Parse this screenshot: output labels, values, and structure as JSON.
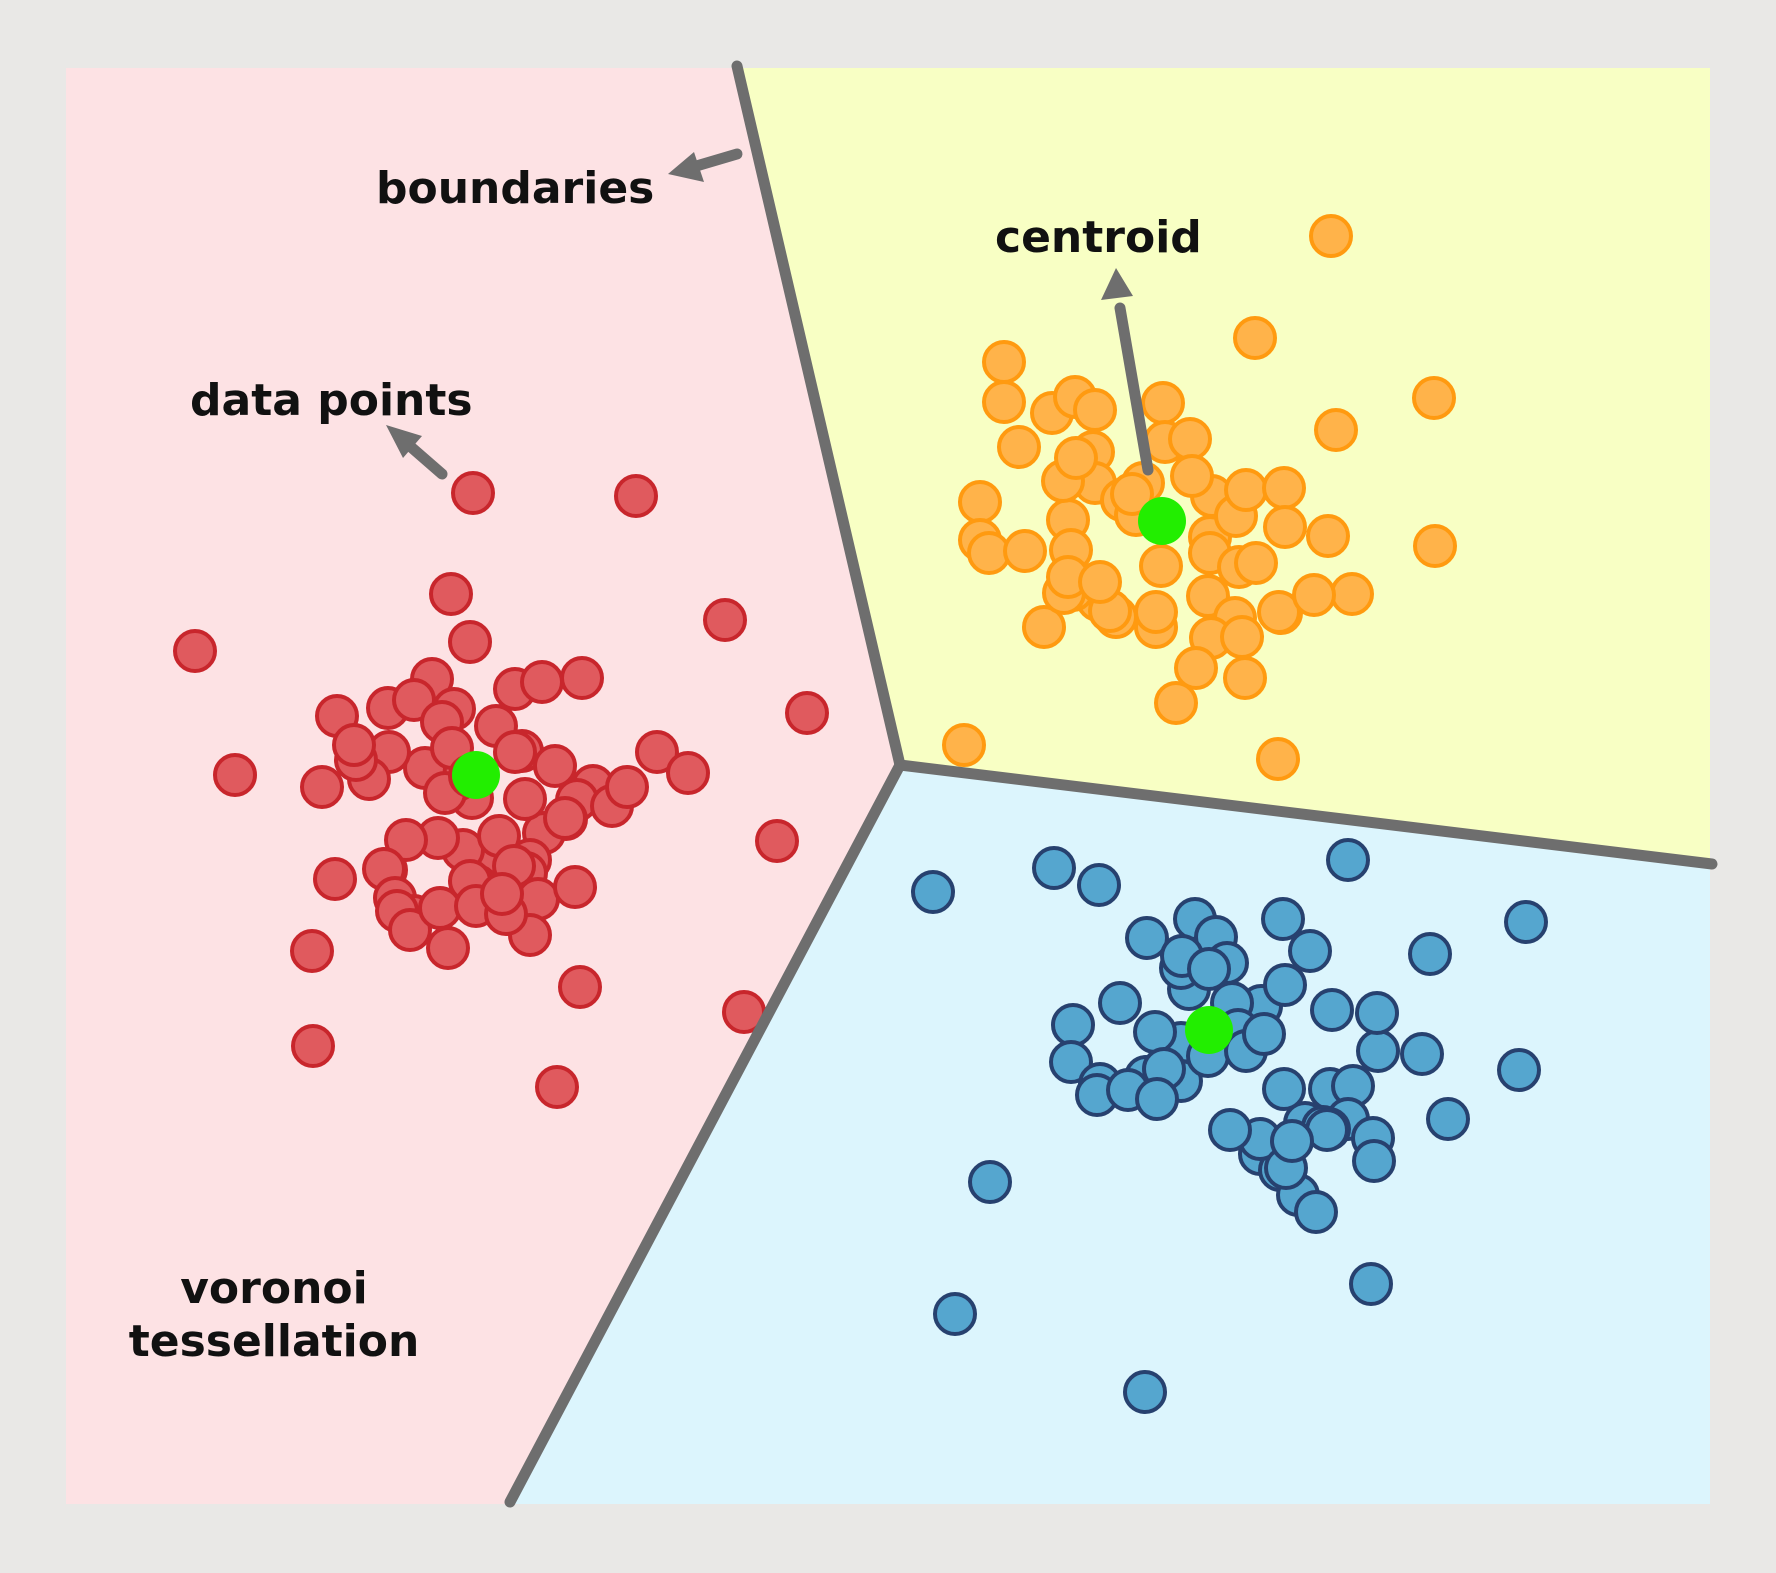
{
  "labels": {
    "boundaries": "boundaries",
    "centroid": "centroid",
    "data_points": "data points",
    "voronoi_line1": "voronoi",
    "voronoi_line2": "tessellation"
  },
  "colors": {
    "page_background": "#e9e8e6",
    "boundary_line": "#6e6e6e",
    "arrow": "#6e6e6e",
    "centroid": "#22ee00",
    "regions": {
      "red": "#fde2e4",
      "orange": "#f8ffc4",
      "blue": "#dcf5fd"
    },
    "clusters": {
      "red": {
        "fill": "#e05a5e",
        "stroke": "#c8262c"
      },
      "orange": {
        "fill": "#ffb34a",
        "stroke": "#ff9a10"
      },
      "blue": {
        "fill": "#55a6cf",
        "stroke": "#27416f"
      }
    }
  },
  "clusters": [
    {
      "id": "red",
      "point_count": 73
    },
    {
      "id": "orange",
      "point_count": 63
    },
    {
      "id": "blue",
      "point_count": 63
    }
  ]
}
